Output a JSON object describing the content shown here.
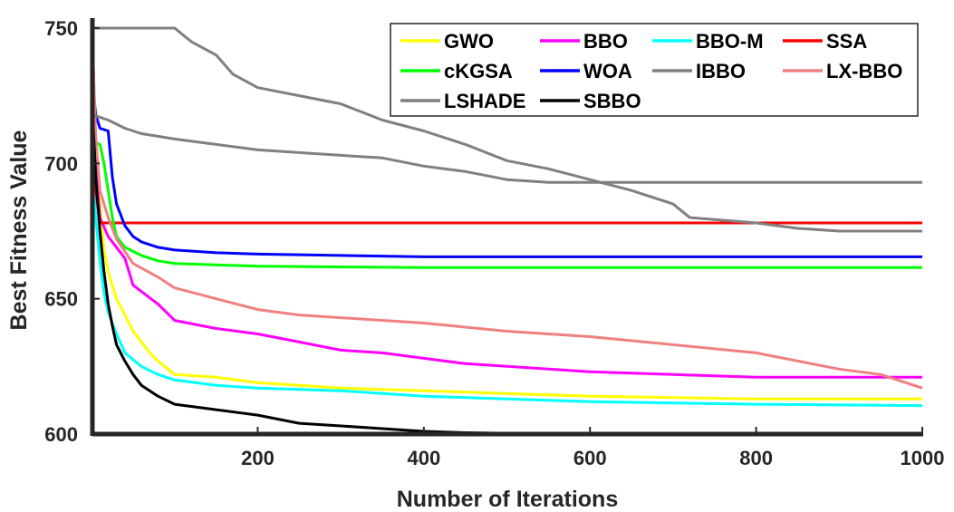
{
  "chart_data": {
    "type": "line",
    "title": "",
    "xlabel": "Number of Iterations",
    "ylabel": "Best Fitness Value",
    "xlim": [
      1,
      1000
    ],
    "ylim": [
      600,
      752
    ],
    "xticks": [
      200,
      400,
      600,
      800,
      1000
    ],
    "yticks": [
      600,
      650,
      700,
      750
    ],
    "grid": false,
    "legend_position": "top-right",
    "series": [
      {
        "name": "GWO",
        "color": "#ffff00",
        "points": [
          [
            1,
            748
          ],
          [
            5,
            705
          ],
          [
            10,
            685
          ],
          [
            15,
            668
          ],
          [
            20,
            660
          ],
          [
            30,
            650
          ],
          [
            40,
            644
          ],
          [
            50,
            638
          ],
          [
            60,
            634
          ],
          [
            70,
            630
          ],
          [
            80,
            627
          ],
          [
            100,
            622
          ],
          [
            150,
            621
          ],
          [
            200,
            619
          ],
          [
            300,
            617
          ],
          [
            400,
            616
          ],
          [
            500,
            615
          ],
          [
            600,
            614
          ],
          [
            800,
            613
          ],
          [
            1000,
            613
          ]
        ]
      },
      {
        "name": "BBO",
        "color": "#ff00ff",
        "points": [
          [
            1,
            750
          ],
          [
            5,
            698
          ],
          [
            10,
            680
          ],
          [
            20,
            673
          ],
          [
            40,
            665
          ],
          [
            50,
            655
          ],
          [
            80,
            648
          ],
          [
            100,
            642
          ],
          [
            150,
            639
          ],
          [
            200,
            637
          ],
          [
            250,
            634
          ],
          [
            300,
            631
          ],
          [
            350,
            630
          ],
          [
            400,
            628
          ],
          [
            450,
            626
          ],
          [
            500,
            625
          ],
          [
            600,
            623
          ],
          [
            700,
            622
          ],
          [
            800,
            621
          ],
          [
            1000,
            621
          ]
        ]
      },
      {
        "name": "BBO-M",
        "color": "#00ffff",
        "points": [
          [
            1,
            705
          ],
          [
            5,
            680
          ],
          [
            10,
            664
          ],
          [
            15,
            652
          ],
          [
            20,
            645
          ],
          [
            30,
            637
          ],
          [
            40,
            630
          ],
          [
            60,
            625
          ],
          [
            80,
            622
          ],
          [
            100,
            620
          ],
          [
            150,
            618
          ],
          [
            200,
            617
          ],
          [
            300,
            616
          ],
          [
            400,
            614
          ],
          [
            500,
            613
          ],
          [
            600,
            612
          ],
          [
            800,
            611
          ],
          [
            1000,
            610.5
          ]
        ]
      },
      {
        "name": "SSA",
        "color": "#ff0000",
        "points": [
          [
            1,
            700
          ],
          [
            10,
            678
          ],
          [
            1000,
            678
          ]
        ]
      },
      {
        "name": "cKGSA",
        "color": "#00ff00",
        "points": [
          [
            1,
            708
          ],
          [
            10,
            707
          ],
          [
            15,
            700
          ],
          [
            20,
            690
          ],
          [
            25,
            680
          ],
          [
            30,
            673
          ],
          [
            40,
            669
          ],
          [
            60,
            666
          ],
          [
            80,
            664
          ],
          [
            100,
            663
          ],
          [
            200,
            662
          ],
          [
            400,
            661.5
          ],
          [
            1000,
            661.5
          ]
        ]
      },
      {
        "name": "WOA",
        "color": "#0000ff",
        "points": [
          [
            1,
            730
          ],
          [
            5,
            718
          ],
          [
            10,
            713
          ],
          [
            20,
            712
          ],
          [
            25,
            695
          ],
          [
            30,
            685
          ],
          [
            40,
            677
          ],
          [
            50,
            673
          ],
          [
            60,
            671
          ],
          [
            80,
            669
          ],
          [
            100,
            668
          ],
          [
            150,
            667
          ],
          [
            200,
            666.5
          ],
          [
            300,
            666
          ],
          [
            400,
            665.5
          ],
          [
            1000,
            665.5
          ]
        ]
      },
      {
        "name": "IBBO",
        "color": "#808080",
        "points": [
          [
            1,
            750
          ],
          [
            100,
            750
          ],
          [
            120,
            745
          ],
          [
            150,
            740
          ],
          [
            170,
            733
          ],
          [
            200,
            728
          ],
          [
            250,
            725
          ],
          [
            300,
            722
          ],
          [
            350,
            716
          ],
          [
            400,
            712
          ],
          [
            450,
            707
          ],
          [
            500,
            701
          ],
          [
            550,
            698
          ],
          [
            600,
            694
          ],
          [
            650,
            690
          ],
          [
            700,
            685
          ],
          [
            720,
            680
          ],
          [
            800,
            678
          ],
          [
            850,
            676
          ],
          [
            900,
            675
          ],
          [
            1000,
            675
          ]
        ]
      },
      {
        "name": "LX-BBO",
        "color": "#f08080",
        "points": [
          [
            1,
            745
          ],
          [
            5,
            710
          ],
          [
            10,
            690
          ],
          [
            20,
            680
          ],
          [
            30,
            672
          ],
          [
            50,
            663
          ],
          [
            80,
            658
          ],
          [
            100,
            654
          ],
          [
            150,
            650
          ],
          [
            200,
            646
          ],
          [
            250,
            644
          ],
          [
            300,
            643
          ],
          [
            400,
            641
          ],
          [
            500,
            638
          ],
          [
            600,
            636
          ],
          [
            700,
            633
          ],
          [
            800,
            630
          ],
          [
            850,
            627
          ],
          [
            900,
            624
          ],
          [
            950,
            622
          ],
          [
            1000,
            617
          ]
        ]
      },
      {
        "name": "LSHADE",
        "color": "#808080",
        "points": [
          [
            1,
            718
          ],
          [
            20,
            716
          ],
          [
            40,
            713
          ],
          [
            60,
            711
          ],
          [
            80,
            710
          ],
          [
            100,
            709
          ],
          [
            150,
            707
          ],
          [
            200,
            705
          ],
          [
            250,
            704
          ],
          [
            300,
            703
          ],
          [
            350,
            702
          ],
          [
            400,
            699
          ],
          [
            450,
            697
          ],
          [
            500,
            694
          ],
          [
            550,
            693
          ],
          [
            600,
            693
          ],
          [
            700,
            693
          ],
          [
            800,
            693
          ],
          [
            900,
            693
          ],
          [
            1000,
            693
          ]
        ]
      },
      {
        "name": "SBBO",
        "color": "#000000",
        "points": [
          [
            1,
            720
          ],
          [
            5,
            695
          ],
          [
            10,
            675
          ],
          [
            15,
            660
          ],
          [
            20,
            648
          ],
          [
            25,
            640
          ],
          [
            30,
            633
          ],
          [
            40,
            627
          ],
          [
            50,
            622
          ],
          [
            60,
            618
          ],
          [
            80,
            614
          ],
          [
            100,
            611
          ],
          [
            150,
            609
          ],
          [
            200,
            607
          ],
          [
            250,
            604
          ],
          [
            300,
            603
          ],
          [
            350,
            602
          ],
          [
            400,
            601
          ],
          [
            450,
            600.5
          ],
          [
            500,
            600.3
          ],
          [
            1000,
            600.2
          ]
        ]
      }
    ]
  }
}
